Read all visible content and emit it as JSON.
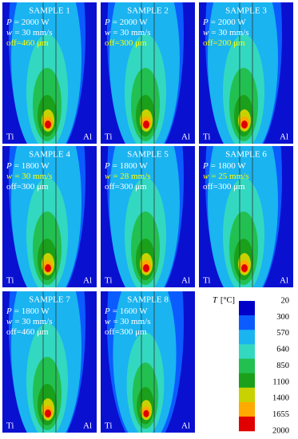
{
  "panels": [
    {
      "title": "SAMPLE 1",
      "lines": [
        {
          "symbol": "P",
          "text": "= 2000 W",
          "highlight": false
        },
        {
          "symbol": "w",
          "text": "= 30 mm/s",
          "highlight": false
        },
        {
          "text": "off=460 μm",
          "highlight": true
        }
      ],
      "left": "Ti",
      "right": "Al"
    },
    {
      "title": "SAMPLE 2",
      "lines": [
        {
          "symbol": "P",
          "text": "= 2000 W",
          "highlight": false
        },
        {
          "symbol": "w",
          "text": "= 30 mm/s",
          "highlight": false
        },
        {
          "text": "off=300 μm",
          "highlight": true
        }
      ],
      "left": "Ti",
      "right": "Al"
    },
    {
      "title": "SAMPLE 3",
      "lines": [
        {
          "symbol": "P",
          "text": "= 2000 W",
          "highlight": false
        },
        {
          "symbol": "w",
          "text": "= 30 mm/s",
          "highlight": false
        },
        {
          "text": "off=200 μm",
          "highlight": true
        }
      ],
      "left": "Ti",
      "right": "Al"
    },
    {
      "title": "SAMPLE 4",
      "lines": [
        {
          "symbol": "P",
          "text": "= 1800 W",
          "highlight": false
        },
        {
          "symbol": "w",
          "text": "= 30 mm/s",
          "highlight": true
        },
        {
          "text": "off=300 μm",
          "highlight": false
        }
      ],
      "left": "Ti",
      "right": "Al"
    },
    {
      "title": "SAMPLE 5",
      "lines": [
        {
          "symbol": "P",
          "text": "= 1800 W",
          "highlight": false
        },
        {
          "symbol": "w",
          "text": "= 28 mm/s",
          "highlight": true
        },
        {
          "text": "off=300 μm",
          "highlight": false
        }
      ],
      "left": "Ti",
      "right": "Al"
    },
    {
      "title": "SAMPLE 6",
      "lines": [
        {
          "symbol": "P",
          "text": "= 1800 W",
          "highlight": false
        },
        {
          "symbol": "w",
          "text": "= 25 mm/s",
          "highlight": true
        },
        {
          "text": "off=300 μm",
          "highlight": false
        }
      ],
      "left": "Ti",
      "right": "Al"
    },
    {
      "title": "SAMPLE 7",
      "lines": [
        {
          "symbol": "P",
          "text": "= 1800 W",
          "highlight": false
        },
        {
          "symbol": "w",
          "text": "= 30 mm/s",
          "highlight": false
        },
        {
          "text": "off=460 μm",
          "highlight": false
        }
      ],
      "left": "Ti",
      "right": "Al"
    },
    {
      "title": "SAMPLE 8",
      "lines": [
        {
          "symbol": "P",
          "text": "= 1600 W",
          "highlight": false
        },
        {
          "symbol": "w",
          "text": "= 30 mm/s",
          "highlight": false
        },
        {
          "text": "off=300 μm",
          "highlight": false
        }
      ],
      "left": "Ti",
      "right": "Al"
    }
  ],
  "legend": {
    "symbol": "T",
    "unit": "[°C]",
    "labels": [
      "20",
      "300",
      "570",
      "640",
      "850",
      "1100",
      "1400",
      "1655",
      "2000"
    ],
    "colors": [
      "#0000c8",
      "#0a5cff",
      "#1ab4f0",
      "#33d8c0",
      "#22c050",
      "#1aa01a",
      "#c8d200",
      "#ffaa00",
      "#e00000"
    ]
  }
}
